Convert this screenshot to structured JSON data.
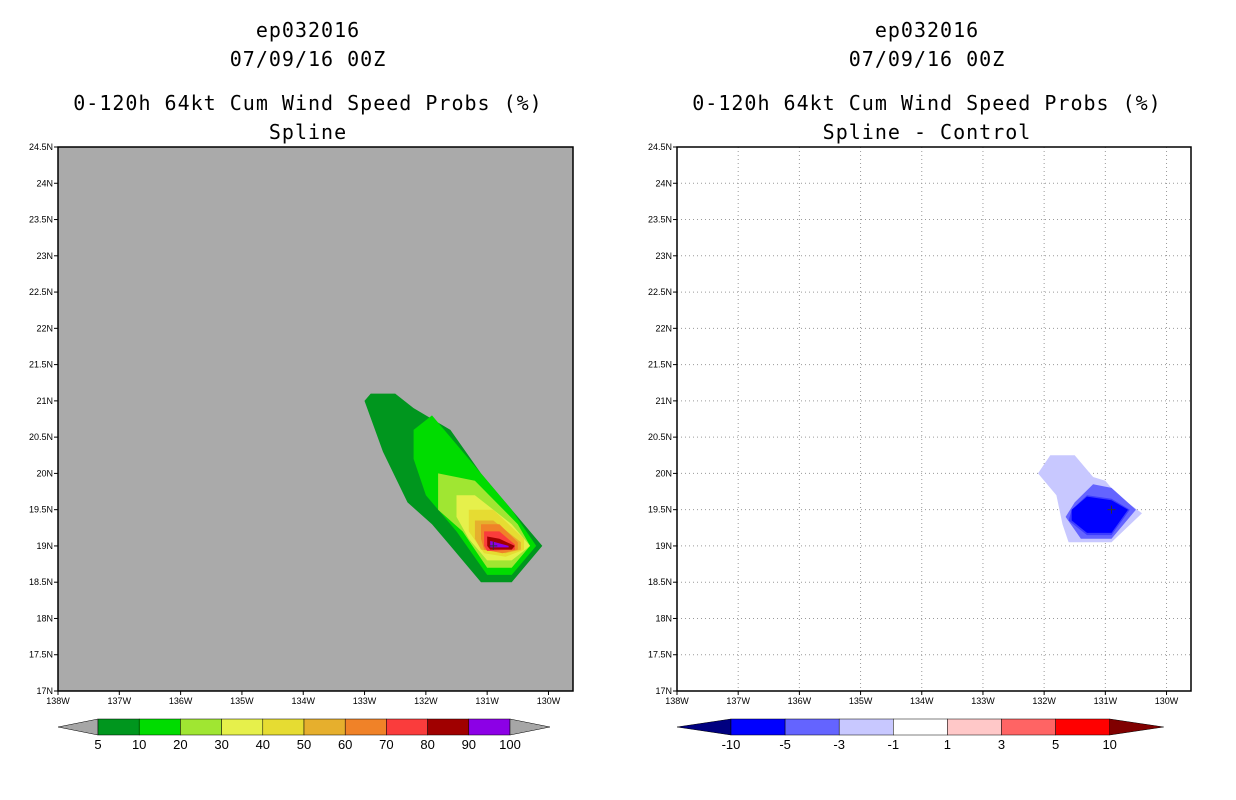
{
  "left": {
    "storm_id": "ep032016",
    "datetime": "07/09/16 00Z",
    "title": "0-120h 64kt Cum Wind Speed Probs (%)",
    "subtitle": "Spline"
  },
  "right": {
    "storm_id": "ep032016",
    "datetime": "07/09/16 00Z",
    "title": "0-120h 64kt Cum Wind Speed Probs (%)",
    "subtitle": "Spline - Control"
  },
  "colors": {
    "land_gray": "#aaaaaa",
    "left_scale": [
      "#a6a6a6",
      "#00961e",
      "#00dc00",
      "#a0e632",
      "#e6f04b",
      "#e6dc32",
      "#e6af2d",
      "#f08228",
      "#fa3c3c",
      "#a00000",
      "#8c00e6",
      "#a6a6a6"
    ],
    "right_scale": [
      "#000080",
      "#0000ff",
      "#6464ff",
      "#c8c8ff",
      "#ffffff",
      "#ffc8c8",
      "#ff6464",
      "#ff0000",
      "#800000"
    ]
  },
  "chart_data": [
    {
      "type": "heatmap",
      "name": "Spline",
      "x_axis": {
        "min": -138,
        "max": -129.6,
        "ticks": [
          -138,
          -137,
          -136,
          -135,
          -134,
          -133,
          -132,
          -131,
          -130
        ],
        "tick_labels": [
          "138W",
          "137W",
          "136W",
          "135W",
          "134W",
          "133W",
          "132W",
          "131W",
          "130W"
        ]
      },
      "y_axis": {
        "min": 17,
        "max": 24.5,
        "ticks": [
          17,
          17.5,
          18,
          18.5,
          19,
          19.5,
          20,
          20.5,
          21,
          21.5,
          22,
          22.5,
          23,
          23.5,
          24,
          24.5
        ],
        "tick_labels": [
          "17N",
          "17.5N",
          "18N",
          "18.5N",
          "19N",
          "19.5N",
          "20N",
          "20.5N",
          "21N",
          "21.5N",
          "22N",
          "22.5N",
          "23N",
          "23.5N",
          "24N",
          "24.5N"
        ]
      },
      "colorbar_levels": [
        "5",
        "10",
        "20",
        "30",
        "40",
        "50",
        "60",
        "70",
        "80",
        "90",
        "100"
      ],
      "contours": [
        {
          "level": 5,
          "polygon": [
            [
              -133,
              21
            ],
            [
              -132.9,
              21.1
            ],
            [
              -132.5,
              21.1
            ],
            [
              -132.2,
              20.9
            ],
            [
              -131.6,
              20.6
            ],
            [
              -131.1,
              20.0
            ],
            [
              -130.8,
              19.7
            ],
            [
              -130.1,
              19.0
            ],
            [
              -130.6,
              18.5
            ],
            [
              -131.1,
              18.5
            ],
            [
              -131.6,
              19.0
            ],
            [
              -131.9,
              19.3
            ],
            [
              -132.3,
              19.6
            ],
            [
              -132.7,
              20.3
            ],
            [
              -133,
              21
            ]
          ]
        },
        {
          "level": 10,
          "polygon": [
            [
              -132.2,
              20.6
            ],
            [
              -131.9,
              20.8
            ],
            [
              -131.4,
              20.3
            ],
            [
              -131,
              19.9
            ],
            [
              -130.6,
              19.5
            ],
            [
              -130.2,
              19.0
            ],
            [
              -130.6,
              18.6
            ],
            [
              -131,
              18.6
            ],
            [
              -131.5,
              19.2
            ],
            [
              -132,
              19.7
            ],
            [
              -132.2,
              20.2
            ],
            [
              -132.2,
              20.6
            ]
          ]
        },
        {
          "level": 20,
          "polygon": [
            [
              -131.8,
              20.0
            ],
            [
              -131.2,
              19.9
            ],
            [
              -130.5,
              19.3
            ],
            [
              -130.3,
              19.0
            ],
            [
              -130.6,
              18.7
            ],
            [
              -131,
              18.7
            ],
            [
              -131.4,
              19.2
            ],
            [
              -131.8,
              19.5
            ],
            [
              -131.8,
              20.0
            ]
          ]
        },
        {
          "level": 30,
          "polygon": [
            [
              -131.5,
              19.7
            ],
            [
              -131.2,
              19.7
            ],
            [
              -130.6,
              19.3
            ],
            [
              -130.3,
              19.0
            ],
            [
              -130.6,
              18.8
            ],
            [
              -131,
              18.8
            ],
            [
              -131.3,
              19.1
            ],
            [
              -131.5,
              19.4
            ],
            [
              -131.5,
              19.7
            ]
          ]
        },
        {
          "level": 40,
          "polygon": [
            [
              -131.3,
              19.5
            ],
            [
              -130.9,
              19.5
            ],
            [
              -130.4,
              19.1
            ],
            [
              -130.4,
              18.95
            ],
            [
              -130.7,
              18.85
            ],
            [
              -131.05,
              18.9
            ],
            [
              -131.3,
              19.2
            ],
            [
              -131.3,
              19.5
            ]
          ]
        },
        {
          "level": 50,
          "polygon": [
            [
              -131.2,
              19.35
            ],
            [
              -130.9,
              19.35
            ],
            [
              -130.45,
              19.05
            ],
            [
              -130.45,
              18.95
            ],
            [
              -130.7,
              18.9
            ],
            [
              -131.1,
              18.95
            ],
            [
              -131.2,
              19.1
            ],
            [
              -131.2,
              19.35
            ]
          ]
        },
        {
          "level": 60,
          "polygon": [
            [
              -131.1,
              19.3
            ],
            [
              -130.8,
              19.3
            ],
            [
              -130.5,
              19.05
            ],
            [
              -130.5,
              18.95
            ],
            [
              -130.75,
              18.9
            ],
            [
              -131.05,
              18.95
            ],
            [
              -131.1,
              19.1
            ],
            [
              -131.1,
              19.3
            ]
          ]
        },
        {
          "level": 70,
          "polygon": [
            [
              -131.05,
              19.2
            ],
            [
              -130.8,
              19.2
            ],
            [
              -130.55,
              19.02
            ],
            [
              -130.55,
              18.95
            ],
            [
              -131.0,
              18.93
            ],
            [
              -131.05,
              19.0
            ],
            [
              -131.05,
              19.2
            ]
          ]
        },
        {
          "level": 80,
          "polygon": [
            [
              -131.0,
              19.13
            ],
            [
              -130.8,
              19.1
            ],
            [
              -130.55,
              19.0
            ],
            [
              -130.6,
              18.95
            ],
            [
              -130.95,
              18.95
            ],
            [
              -131.0,
              19.0
            ],
            [
              -131.0,
              19.13
            ]
          ]
        },
        {
          "level": 90,
          "polygon": [
            [
              -130.95,
              19.07
            ],
            [
              -130.65,
              19.0
            ],
            [
              -130.65,
              18.98
            ],
            [
              -130.95,
              18.98
            ],
            [
              -130.95,
              19.07
            ]
          ]
        }
      ],
      "points": [
        {
          "lon": -130.9,
          "lat": 19.0
        }
      ]
    },
    {
      "type": "heatmap",
      "name": "Spline - Control",
      "x_axis": {
        "min": -138,
        "max": -129.6,
        "ticks": [
          -138,
          -137,
          -136,
          -135,
          -134,
          -133,
          -132,
          -131,
          -130
        ],
        "tick_labels": [
          "138W",
          "137W",
          "136W",
          "135W",
          "134W",
          "133W",
          "132W",
          "131W",
          "130W"
        ]
      },
      "y_axis": {
        "min": 17,
        "max": 24.5,
        "ticks": [
          17,
          17.5,
          18,
          18.5,
          19,
          19.5,
          20,
          20.5,
          21,
          21.5,
          22,
          22.5,
          23,
          23.5,
          24,
          24.5
        ],
        "tick_labels": [
          "17N",
          "17.5N",
          "18N",
          "18.5N",
          "19N",
          "19.5N",
          "20N",
          "20.5N",
          "21N",
          "21.5N",
          "22N",
          "22.5N",
          "23N",
          "23.5N",
          "24N",
          "24.5N"
        ]
      },
      "grid": true,
      "colorbar_levels": [
        "-10",
        "-5",
        "-3",
        "-1",
        "1",
        "3",
        "5",
        "10"
      ],
      "contours": [
        {
          "level": -1,
          "polygon": [
            [
              -132.1,
              20.0
            ],
            [
              -131.9,
              20.25
            ],
            [
              -131.5,
              20.25
            ],
            [
              -131.2,
              19.95
            ],
            [
              -131.0,
              19.9
            ],
            [
              -130.8,
              19.7
            ],
            [
              -130.4,
              19.45
            ],
            [
              -130.9,
              19.05
            ],
            [
              -131.6,
              19.05
            ],
            [
              -131.7,
              19.3
            ],
            [
              -131.8,
              19.7
            ],
            [
              -132.1,
              20.0
            ]
          ]
        },
        {
          "level": -3,
          "polygon": [
            [
              -131.5,
              19.6
            ],
            [
              -131.2,
              19.85
            ],
            [
              -130.9,
              19.8
            ],
            [
              -130.5,
              19.5
            ],
            [
              -130.9,
              19.1
            ],
            [
              -131.4,
              19.1
            ],
            [
              -131.65,
              19.4
            ],
            [
              -131.5,
              19.6
            ]
          ]
        },
        {
          "level": -5,
          "polygon": [
            [
              -131.55,
              19.5
            ],
            [
              -131.3,
              19.7
            ],
            [
              -130.9,
              19.65
            ],
            [
              -130.6,
              19.5
            ],
            [
              -130.9,
              19.15
            ],
            [
              -131.3,
              19.15
            ],
            [
              -131.6,
              19.35
            ],
            [
              -131.55,
              19.5
            ]
          ]
        },
        {
          "level": -10,
          "polygon": [
            [
              -131.55,
              19.5
            ],
            [
              -131.3,
              19.68
            ],
            [
              -130.9,
              19.63
            ],
            [
              -130.63,
              19.5
            ],
            [
              -130.9,
              19.18
            ],
            [
              -131.3,
              19.18
            ],
            [
              -131.55,
              19.35
            ],
            [
              -131.55,
              19.5
            ]
          ]
        }
      ],
      "points": [
        {
          "lon": -130.9,
          "lat": 19.5
        }
      ]
    }
  ]
}
